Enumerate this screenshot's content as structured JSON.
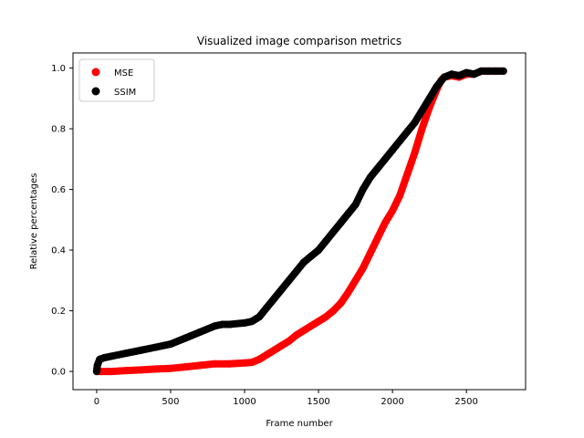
{
  "chart_data": {
    "type": "scatter",
    "title": "Visualized image comparison metrics",
    "xlabel": "Frame number",
    "ylabel": "Relative percentages",
    "xlim": [
      -160,
      2900
    ],
    "ylim": [
      -0.06,
      1.05
    ],
    "xticks": [
      0,
      500,
      1000,
      1500,
      2000,
      2500
    ],
    "yticks": [
      0.0,
      0.2,
      0.4,
      0.6,
      0.8,
      1.0
    ],
    "xtick_labels": [
      "0",
      "500",
      "1000",
      "1500",
      "2000",
      "2500"
    ],
    "ytick_labels": [
      "0.0",
      "0.2",
      "0.4",
      "0.6",
      "0.8",
      "1.0"
    ],
    "grid": false,
    "legend_position": "top-left",
    "series": [
      {
        "name": "MSE",
        "color": "#ff0000",
        "x": [
          0,
          30,
          100,
          200,
          300,
          400,
          500,
          600,
          700,
          800,
          900,
          1000,
          1050,
          1100,
          1150,
          1200,
          1250,
          1300,
          1350,
          1400,
          1450,
          1500,
          1550,
          1600,
          1650,
          1700,
          1750,
          1800,
          1850,
          1900,
          1950,
          2000,
          2050,
          2100,
          2150,
          2200,
          2250,
          2300,
          2330,
          2350,
          2400,
          2450,
          2500,
          2550,
          2600,
          2650,
          2700,
          2750
        ],
        "y": [
          0.0,
          0.0,
          0.0,
          0.003,
          0.005,
          0.008,
          0.01,
          0.015,
          0.02,
          0.025,
          0.025,
          0.028,
          0.03,
          0.04,
          0.055,
          0.07,
          0.085,
          0.1,
          0.12,
          0.135,
          0.15,
          0.165,
          0.18,
          0.2,
          0.225,
          0.26,
          0.3,
          0.34,
          0.39,
          0.44,
          0.49,
          0.53,
          0.58,
          0.65,
          0.72,
          0.8,
          0.87,
          0.93,
          0.96,
          0.97,
          0.975,
          0.97,
          0.98,
          0.98,
          0.99,
          0.99,
          0.99,
          0.99
        ]
      },
      {
        "name": "SSIM",
        "color": "#000000",
        "x": [
          0,
          5,
          20,
          50,
          100,
          200,
          300,
          400,
          500,
          600,
          700,
          800,
          850,
          900,
          1000,
          1050,
          1100,
          1150,
          1200,
          1250,
          1300,
          1350,
          1400,
          1450,
          1500,
          1550,
          1600,
          1650,
          1700,
          1750,
          1800,
          1850,
          1900,
          1950,
          2000,
          2050,
          2100,
          2150,
          2200,
          2250,
          2300,
          2350,
          2400,
          2450,
          2500,
          2550,
          2600,
          2650,
          2700,
          2750
        ],
        "y": [
          0.0,
          0.02,
          0.04,
          0.045,
          0.05,
          0.06,
          0.07,
          0.08,
          0.09,
          0.11,
          0.13,
          0.15,
          0.155,
          0.155,
          0.16,
          0.165,
          0.18,
          0.21,
          0.24,
          0.27,
          0.3,
          0.33,
          0.36,
          0.38,
          0.4,
          0.43,
          0.46,
          0.49,
          0.52,
          0.55,
          0.6,
          0.64,
          0.67,
          0.7,
          0.73,
          0.76,
          0.79,
          0.82,
          0.86,
          0.9,
          0.94,
          0.97,
          0.98,
          0.975,
          0.985,
          0.98,
          0.99,
          0.99,
          0.99,
          0.99
        ]
      }
    ]
  }
}
